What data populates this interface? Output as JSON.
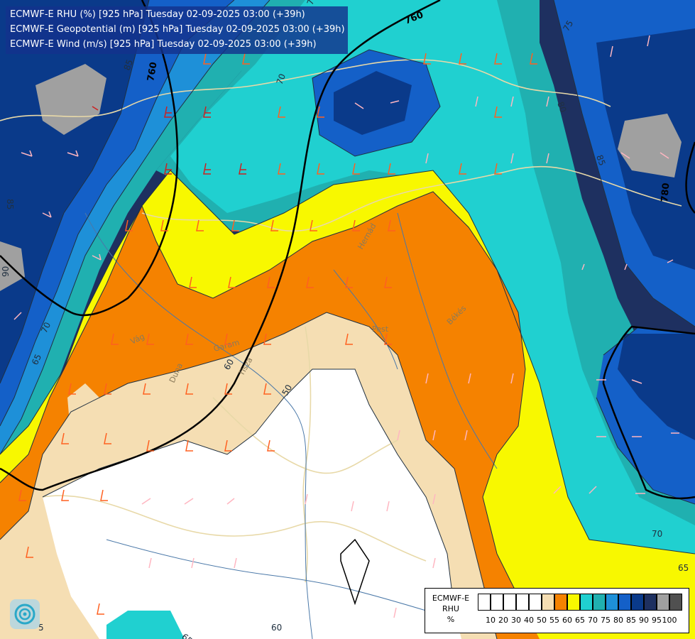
{
  "header": {
    "line1": "ECMWF-E RHU (%) [925 hPa] Tuesday 02-09-2025 03:00 (+39h)",
    "line2": "ECMWF-E Geopotential (m) [925 hPa] Tuesday 02-09-2025 03:00 (+39h)",
    "line3": "ECMWF-E Wind (m/s) [925 hPa] Tuesday 02-09-2025 03:00 (+39h)"
  },
  "legend": {
    "title_model": "ECMWF-E",
    "title_var": "RHU",
    "title_unit": "%",
    "colors": [
      "#ffffff",
      "#ffffff",
      "#ffffff",
      "#ffffff",
      "#ffffff",
      "#f5deb3",
      "#f58200",
      "#f8f800",
      "#20d0d0",
      "#20b0b0",
      "#1e90d8",
      "#1460c8",
      "#0a3a8a",
      "#1e3060",
      "#a0a0a0",
      "#505050"
    ],
    "ticks": [
      "10",
      "20",
      "30",
      "40",
      "50",
      "55",
      "60",
      "65",
      "70",
      "75",
      "80",
      "85",
      "90",
      "95",
      "100"
    ]
  },
  "geopotential_labels": [
    "760",
    "780",
    "760",
    "780"
  ],
  "rhu_contour_labels": [
    "85",
    "75",
    "80",
    "85",
    "70",
    "85",
    "90",
    "70",
    "65",
    "75",
    "60",
    "50",
    "65",
    "60",
    "70",
    "65",
    "5"
  ],
  "place_labels": [
    "Vág",
    "Garam",
    "Ipoly",
    "Tisza",
    "Duna",
    "Pest",
    "Békés",
    "Hernád"
  ],
  "logo": {
    "name": "omsz-logo"
  }
}
